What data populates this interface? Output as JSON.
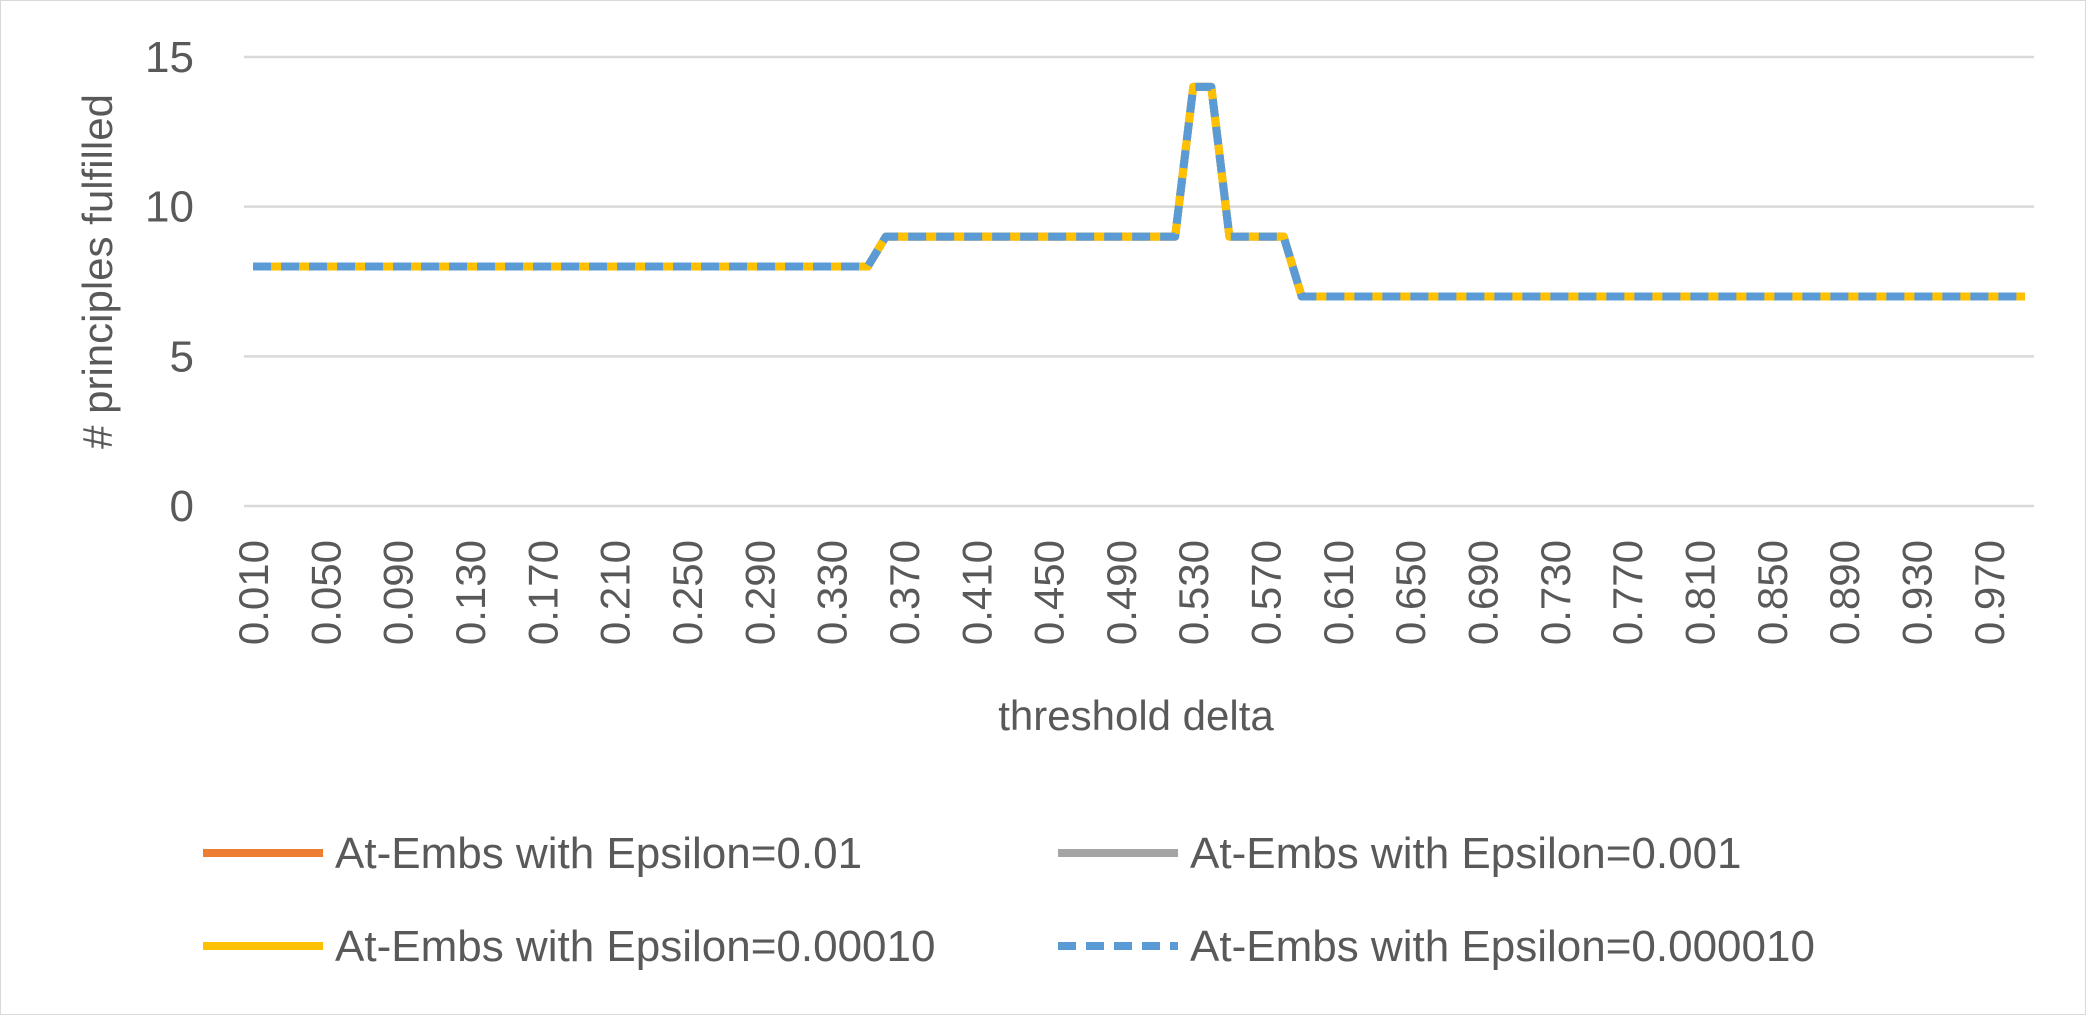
{
  "chart_data": {
    "type": "line",
    "title": "",
    "xlabel": "threshold delta",
    "ylabel": "# principles fulfilled",
    "ylim": [
      0,
      15
    ],
    "yticks": [
      0,
      5,
      10,
      15
    ],
    "grid": true,
    "legend_position": "bottom",
    "x": [
      0.01,
      0.02,
      0.03,
      0.04,
      0.05,
      0.06,
      0.07,
      0.08,
      0.09,
      0.1,
      0.11,
      0.12,
      0.13,
      0.14,
      0.15,
      0.16,
      0.17,
      0.18,
      0.19,
      0.2,
      0.21,
      0.22,
      0.23,
      0.24,
      0.25,
      0.26,
      0.27,
      0.28,
      0.29,
      0.3,
      0.31,
      0.32,
      0.33,
      0.34,
      0.35,
      0.36,
      0.37,
      0.38,
      0.39,
      0.4,
      0.41,
      0.42,
      0.43,
      0.44,
      0.45,
      0.46,
      0.47,
      0.48,
      0.49,
      0.5,
      0.51,
      0.52,
      0.53,
      0.54,
      0.55,
      0.56,
      0.57,
      0.58,
      0.59,
      0.6,
      0.61,
      0.62,
      0.63,
      0.64,
      0.65,
      0.66,
      0.67,
      0.68,
      0.69,
      0.7,
      0.71,
      0.72,
      0.73,
      0.74,
      0.75,
      0.76,
      0.77,
      0.78,
      0.79,
      0.8,
      0.81,
      0.82,
      0.83,
      0.84,
      0.85,
      0.86,
      0.87,
      0.88,
      0.89,
      0.9,
      0.91,
      0.92,
      0.93,
      0.94,
      0.95,
      0.96,
      0.97,
      0.98,
      0.99
    ],
    "x_tick_labels": [
      "0.010",
      "0.050",
      "0.090",
      "0.130",
      "0.170",
      "0.210",
      "0.250",
      "0.290",
      "0.330",
      "0.370",
      "0.410",
      "0.450",
      "0.490",
      "0.530",
      "0.570",
      "0.610",
      "0.650",
      "0.690",
      "0.730",
      "0.770",
      "0.810",
      "0.850",
      "0.890",
      "0.930",
      "0.970"
    ],
    "series": [
      {
        "name": "At-Embs with Epsilon=0.01",
        "color": "#ed7d31",
        "dash": "solid",
        "values": [
          8,
          8,
          8,
          8,
          8,
          8,
          8,
          8,
          8,
          8,
          8,
          8,
          8,
          8,
          8,
          8,
          8,
          8,
          8,
          8,
          8,
          8,
          8,
          8,
          8,
          8,
          8,
          8,
          8,
          8,
          8,
          8,
          8,
          8,
          8,
          9,
          9,
          9,
          9,
          9,
          9,
          9,
          9,
          9,
          9,
          9,
          9,
          9,
          9,
          9,
          9,
          9,
          14,
          14,
          9,
          9,
          9,
          9,
          7,
          7,
          7,
          7,
          7,
          7,
          7,
          7,
          7,
          7,
          7,
          7,
          7,
          7,
          7,
          7,
          7,
          7,
          7,
          7,
          7,
          7,
          7,
          7,
          7,
          7,
          7,
          7,
          7,
          7,
          7,
          7,
          7,
          7,
          7,
          7,
          7,
          7,
          7,
          7,
          7
        ]
      },
      {
        "name": "At-Embs with Epsilon=0.001",
        "color": "#a5a5a5",
        "dash": "solid",
        "values": [
          8,
          8,
          8,
          8,
          8,
          8,
          8,
          8,
          8,
          8,
          8,
          8,
          8,
          8,
          8,
          8,
          8,
          8,
          8,
          8,
          8,
          8,
          8,
          8,
          8,
          8,
          8,
          8,
          8,
          8,
          8,
          8,
          8,
          8,
          8,
          9,
          9,
          9,
          9,
          9,
          9,
          9,
          9,
          9,
          9,
          9,
          9,
          9,
          9,
          9,
          9,
          9,
          14,
          14,
          9,
          9,
          9,
          9,
          7,
          7,
          7,
          7,
          7,
          7,
          7,
          7,
          7,
          7,
          7,
          7,
          7,
          7,
          7,
          7,
          7,
          7,
          7,
          7,
          7,
          7,
          7,
          7,
          7,
          7,
          7,
          7,
          7,
          7,
          7,
          7,
          7,
          7,
          7,
          7,
          7,
          7,
          7,
          7,
          7
        ]
      },
      {
        "name": "At-Embs with Epsilon=0.00010",
        "color": "#ffc000",
        "dash": "solid",
        "values": [
          8,
          8,
          8,
          8,
          8,
          8,
          8,
          8,
          8,
          8,
          8,
          8,
          8,
          8,
          8,
          8,
          8,
          8,
          8,
          8,
          8,
          8,
          8,
          8,
          8,
          8,
          8,
          8,
          8,
          8,
          8,
          8,
          8,
          8,
          8,
          9,
          9,
          9,
          9,
          9,
          9,
          9,
          9,
          9,
          9,
          9,
          9,
          9,
          9,
          9,
          9,
          9,
          14,
          14,
          9,
          9,
          9,
          9,
          7,
          7,
          7,
          7,
          7,
          7,
          7,
          7,
          7,
          7,
          7,
          7,
          7,
          7,
          7,
          7,
          7,
          7,
          7,
          7,
          7,
          7,
          7,
          7,
          7,
          7,
          7,
          7,
          7,
          7,
          7,
          7,
          7,
          7,
          7,
          7,
          7,
          7,
          7,
          7,
          7
        ]
      },
      {
        "name": "At-Embs with Epsilon=0.000010",
        "color": "#5b9bd5",
        "dash": "dashed",
        "values": [
          8,
          8,
          8,
          8,
          8,
          8,
          8,
          8,
          8,
          8,
          8,
          8,
          8,
          8,
          8,
          8,
          8,
          8,
          8,
          8,
          8,
          8,
          8,
          8,
          8,
          8,
          8,
          8,
          8,
          8,
          8,
          8,
          8,
          8,
          8,
          9,
          9,
          9,
          9,
          9,
          9,
          9,
          9,
          9,
          9,
          9,
          9,
          9,
          9,
          9,
          9,
          9,
          14,
          14,
          9,
          9,
          9,
          9,
          7,
          7,
          7,
          7,
          7,
          7,
          7,
          7,
          7,
          7,
          7,
          7,
          7,
          7,
          7,
          7,
          7,
          7,
          7,
          7,
          7,
          7,
          7,
          7,
          7,
          7,
          7,
          7,
          7,
          7,
          7,
          7,
          7,
          7,
          7,
          7,
          7,
          7,
          7,
          7,
          7
        ]
      }
    ]
  }
}
